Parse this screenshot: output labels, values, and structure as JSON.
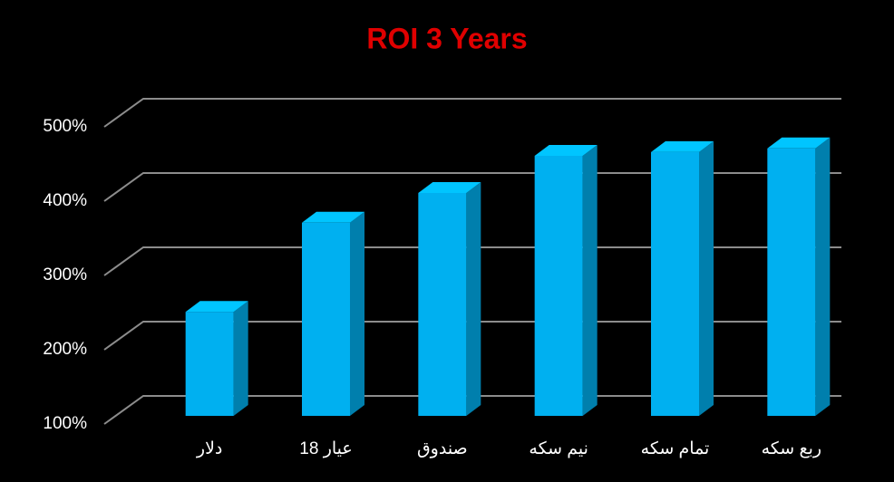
{
  "chart_data": {
    "type": "bar3d",
    "title": "ROI 3 Years",
    "categories": [
      "دلار",
      "18 عیار",
      "صندوق",
      "نیم سکه",
      "تمام سکه",
      "ربع سکه"
    ],
    "values": [
      240,
      360,
      400,
      450,
      455,
      460
    ],
    "color": "#00b0f0",
    "ylim": [
      100,
      500
    ],
    "yticks": [
      {
        "value": 100,
        "label": "100%"
      },
      {
        "value": 200,
        "label": "200%"
      },
      {
        "value": 300,
        "label": "300%"
      },
      {
        "value": 400,
        "label": "400%"
      },
      {
        "value": 500,
        "label": "500%"
      }
    ],
    "grid": true
  }
}
